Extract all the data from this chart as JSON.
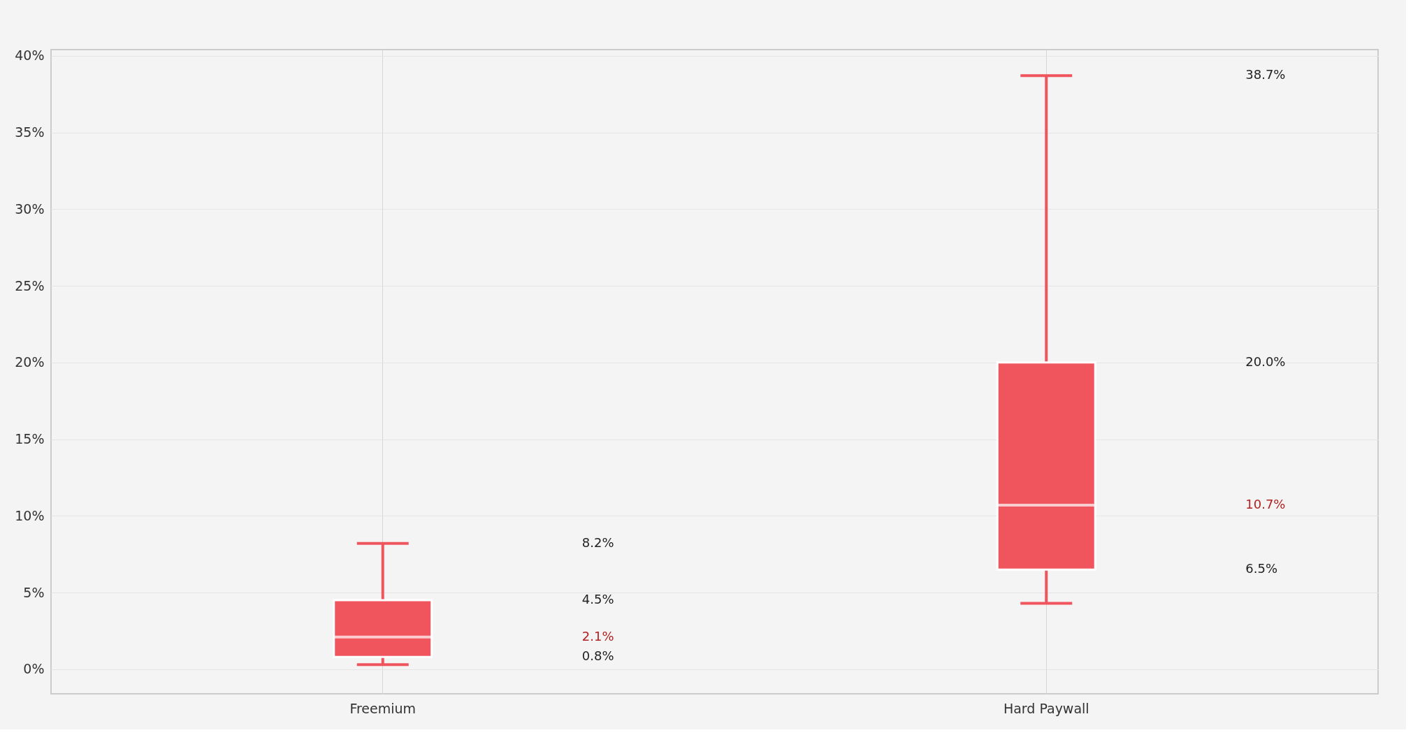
{
  "chart_data": {
    "type": "box",
    "categories": [
      "Freemium",
      "Hard Paywall"
    ],
    "color": "#f0555e",
    "boxes": [
      {
        "low": 0.3,
        "q1": 0.8,
        "median": 2.1,
        "q3": 4.5,
        "high": 8.2
      },
      {
        "low": 4.3,
        "q1": 6.5,
        "median": 10.7,
        "q3": 20.0,
        "high": 38.7
      }
    ],
    "ylim": [
      -1.6,
      40.4
    ],
    "yticks": [
      {
        "value": 0,
        "label": "0%"
      },
      {
        "value": 5,
        "label": "5%"
      },
      {
        "value": 10,
        "label": "10%"
      },
      {
        "value": 15,
        "label": "15%"
      },
      {
        "value": 20,
        "label": "20%"
      },
      {
        "value": 25,
        "label": "25%"
      },
      {
        "value": 30,
        "label": "30%"
      },
      {
        "value": 35,
        "label": "35%"
      },
      {
        "value": 40,
        "label": "40%"
      }
    ],
    "grid": true,
    "annotations": [
      "8.2%",
      "4.5%",
      "2.1%",
      "0.8%",
      "38.7%",
      "20.0%",
      "10.7%",
      "6.5%"
    ]
  }
}
